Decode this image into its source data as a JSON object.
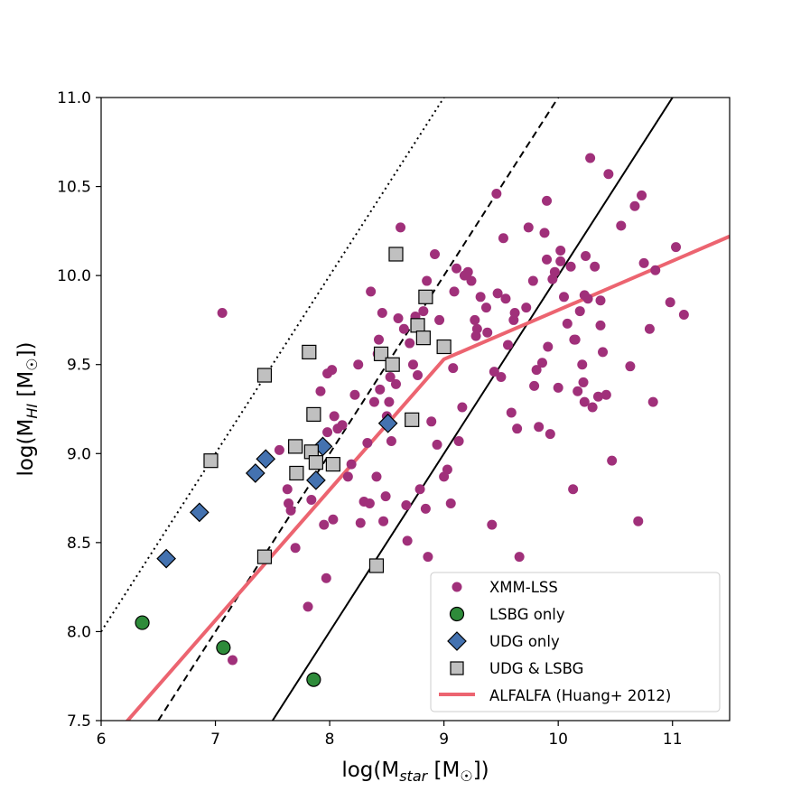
{
  "chart_data": {
    "type": "scatter",
    "xlabel": {
      "prefix": "log(M",
      "sub": "star",
      "suffix": " [M",
      "sun": "☉",
      "end": "])"
    },
    "ylabel": {
      "prefix": "log(M",
      "sub": "HI",
      "suffix": " [M",
      "sun": "☉",
      "end": "])"
    },
    "xlim": [
      6,
      11.5
    ],
    "ylim": [
      7.5,
      11.0
    ],
    "xticks": [
      "6",
      "7",
      "8",
      "9",
      "10",
      "11"
    ],
    "yticks": [
      "7.5",
      "8.0",
      "8.5",
      "9.0",
      "9.5",
      "10.0",
      "10.5",
      "11.0"
    ],
    "colors": {
      "xmm": "#a0307a",
      "lsbg": "#2e8b3a",
      "udg": "#4472b0",
      "both": "#c0c0c0",
      "alfalfa": "#ec6470"
    },
    "legend": {
      "position": "lower-right",
      "items": [
        {
          "label": "XMM-LSS",
          "marker": "dot"
        },
        {
          "label": "LSBG only",
          "marker": "circle"
        },
        {
          "label": "UDG only",
          "marker": "diamond"
        },
        {
          "label": "UDG & LSBG",
          "marker": "square"
        },
        {
          "label": "ALFALFA (Huang+ 2012)",
          "marker": "line"
        }
      ]
    },
    "reference_lines": [
      {
        "name": "dotted",
        "style": "dotted",
        "points": [
          [
            6.0,
            8.0
          ],
          [
            10.0,
            12.0
          ]
        ]
      },
      {
        "name": "dashed",
        "style": "dashed",
        "points": [
          [
            6.5,
            7.5
          ],
          [
            10.5,
            11.5
          ]
        ]
      },
      {
        "name": "solid",
        "style": "solid",
        "points": [
          [
            7.5,
            7.5
          ],
          [
            11.5,
            11.5
          ]
        ]
      }
    ],
    "series": [
      {
        "name": "ALFALFA (Huang+ 2012)",
        "type": "line",
        "points": [
          [
            6.0,
            7.33
          ],
          [
            9.0,
            9.53
          ],
          [
            11.5,
            10.22
          ]
        ]
      },
      {
        "name": "XMM-LSS",
        "type": "scatter",
        "points": [
          [
            7.06,
            9.79
          ],
          [
            7.15,
            7.84
          ],
          [
            7.56,
            9.02
          ],
          [
            7.63,
            8.8
          ],
          [
            7.64,
            8.72
          ],
          [
            7.66,
            8.68
          ],
          [
            7.7,
            8.47
          ],
          [
            7.81,
            8.14
          ],
          [
            7.84,
            8.74
          ],
          [
            7.88,
            8.95
          ],
          [
            7.92,
            9.35
          ],
          [
            7.95,
            8.6
          ],
          [
            7.97,
            8.3
          ],
          [
            7.98,
            9.45
          ],
          [
            7.98,
            9.12
          ],
          [
            8.02,
            9.47
          ],
          [
            8.03,
            8.63
          ],
          [
            8.04,
            9.21
          ],
          [
            8.07,
            9.14
          ],
          [
            8.11,
            9.16
          ],
          [
            8.16,
            8.87
          ],
          [
            8.19,
            8.94
          ],
          [
            8.22,
            9.33
          ],
          [
            8.25,
            9.5
          ],
          [
            8.27,
            8.61
          ],
          [
            8.3,
            8.73
          ],
          [
            8.33,
            9.06
          ],
          [
            8.35,
            8.72
          ],
          [
            8.36,
            9.91
          ],
          [
            8.39,
            9.29
          ],
          [
            8.41,
            8.87
          ],
          [
            8.42,
            9.56
          ],
          [
            8.43,
            9.64
          ],
          [
            8.44,
            9.36
          ],
          [
            8.46,
            9.79
          ],
          [
            8.47,
            8.62
          ],
          [
            8.49,
            8.76
          ],
          [
            8.5,
            9.21
          ],
          [
            8.52,
            9.29
          ],
          [
            8.53,
            9.43
          ],
          [
            8.54,
            9.07
          ],
          [
            8.58,
            9.39
          ],
          [
            8.6,
            9.76
          ],
          [
            8.62,
            10.27
          ],
          [
            8.65,
            9.7
          ],
          [
            8.67,
            8.71
          ],
          [
            8.68,
            8.51
          ],
          [
            8.7,
            9.62
          ],
          [
            8.73,
            9.5
          ],
          [
            8.75,
            9.77
          ],
          [
            8.77,
            9.44
          ],
          [
            8.79,
            8.8
          ],
          [
            8.82,
            9.8
          ],
          [
            8.84,
            8.69
          ],
          [
            8.86,
            8.42
          ],
          [
            8.89,
            9.18
          ],
          [
            8.92,
            10.12
          ],
          [
            8.94,
            9.05
          ],
          [
            8.96,
            9.75
          ],
          [
            9.0,
            8.87
          ],
          [
            9.03,
            8.91
          ],
          [
            9.06,
            8.72
          ],
          [
            9.08,
            9.48
          ],
          [
            9.11,
            10.04
          ],
          [
            9.13,
            9.07
          ],
          [
            9.16,
            9.26
          ],
          [
            9.18,
            10.0
          ],
          [
            9.21,
            10.02
          ],
          [
            9.24,
            9.97
          ],
          [
            9.27,
            9.75
          ],
          [
            9.29,
            9.7
          ],
          [
            9.32,
            9.88
          ],
          [
            9.38,
            9.68
          ],
          [
            9.42,
            8.6
          ],
          [
            9.44,
            9.46
          ],
          [
            9.47,
            9.9
          ],
          [
            9.5,
            9.43
          ],
          [
            9.52,
            10.21
          ],
          [
            9.54,
            9.87
          ],
          [
            9.56,
            9.61
          ],
          [
            9.59,
            9.23
          ],
          [
            9.62,
            9.79
          ],
          [
            9.64,
            9.14
          ],
          [
            9.66,
            8.42
          ],
          [
            9.72,
            9.82
          ],
          [
            9.74,
            10.27
          ],
          [
            9.78,
            9.97
          ],
          [
            9.81,
            9.47
          ],
          [
            9.83,
            9.15
          ],
          [
            9.86,
            9.51
          ],
          [
            9.88,
            10.24
          ],
          [
            9.9,
            10.42
          ],
          [
            9.91,
            9.6
          ],
          [
            9.93,
            9.11
          ],
          [
            9.95,
            9.98
          ],
          [
            9.97,
            10.02
          ],
          [
            10.0,
            9.37
          ],
          [
            10.02,
            10.14
          ],
          [
            10.05,
            9.88
          ],
          [
            10.08,
            9.73
          ],
          [
            10.11,
            10.05
          ],
          [
            10.13,
            8.8
          ],
          [
            10.15,
            9.64
          ],
          [
            10.17,
            9.35
          ],
          [
            10.19,
            9.8
          ],
          [
            10.21,
            9.5
          ],
          [
            10.23,
            9.29
          ],
          [
            10.26,
            9.87
          ],
          [
            10.28,
            10.66
          ],
          [
            10.3,
            9.26
          ],
          [
            10.32,
            10.05
          ],
          [
            10.35,
            9.32
          ],
          [
            10.37,
            9.72
          ],
          [
            10.39,
            9.57
          ],
          [
            10.42,
            9.33
          ],
          [
            10.44,
            10.57
          ],
          [
            10.47,
            8.96
          ],
          [
            10.55,
            10.28
          ],
          [
            10.63,
            9.49
          ],
          [
            10.67,
            10.39
          ],
          [
            10.7,
            8.62
          ],
          [
            10.73,
            10.45
          ],
          [
            10.75,
            10.07
          ],
          [
            10.8,
            9.7
          ],
          [
            10.83,
            9.29
          ],
          [
            10.85,
            10.03
          ],
          [
            10.98,
            9.85
          ],
          [
            11.03,
            10.16
          ],
          [
            11.1,
            9.78
          ],
          [
            8.85,
            9.97
          ],
          [
            9.61,
            9.75
          ],
          [
            10.23,
            9.89
          ],
          [
            9.79,
            9.38
          ],
          [
            10.14,
            9.64
          ],
          [
            9.46,
            10.46
          ],
          [
            9.28,
            9.66
          ],
          [
            9.9,
            10.09
          ],
          [
            10.02,
            10.08
          ],
          [
            10.22,
            9.4
          ],
          [
            10.24,
            10.11
          ],
          [
            10.37,
            9.86
          ],
          [
            9.37,
            9.82
          ],
          [
            9.09,
            9.91
          ]
        ]
      },
      {
        "name": "LSBG only",
        "type": "scatter",
        "points": [
          [
            6.36,
            8.05
          ],
          [
            7.07,
            7.91
          ],
          [
            7.86,
            7.73
          ]
        ]
      },
      {
        "name": "UDG only",
        "type": "scatter",
        "points": [
          [
            6.57,
            8.41
          ],
          [
            6.86,
            8.67
          ],
          [
            7.35,
            8.89
          ],
          [
            7.44,
            8.97
          ],
          [
            7.88,
            8.85
          ],
          [
            7.94,
            9.04
          ],
          [
            8.51,
            9.17
          ]
        ]
      },
      {
        "name": "UDG & LSBG",
        "type": "scatter",
        "points": [
          [
            6.96,
            8.96
          ],
          [
            7.43,
            9.44
          ],
          [
            7.43,
            8.42
          ],
          [
            7.7,
            9.04
          ],
          [
            7.71,
            8.89
          ],
          [
            7.82,
            9.57
          ],
          [
            7.84,
            9.01
          ],
          [
            7.86,
            9.22
          ],
          [
            7.88,
            8.95
          ],
          [
            8.03,
            8.94
          ],
          [
            8.41,
            8.37
          ],
          [
            8.45,
            9.56
          ],
          [
            8.55,
            9.5
          ],
          [
            8.58,
            10.12
          ],
          [
            8.72,
            9.19
          ],
          [
            8.77,
            9.72
          ],
          [
            8.82,
            9.65
          ],
          [
            8.84,
            9.88
          ],
          [
            9.0,
            9.6
          ]
        ]
      }
    ]
  }
}
